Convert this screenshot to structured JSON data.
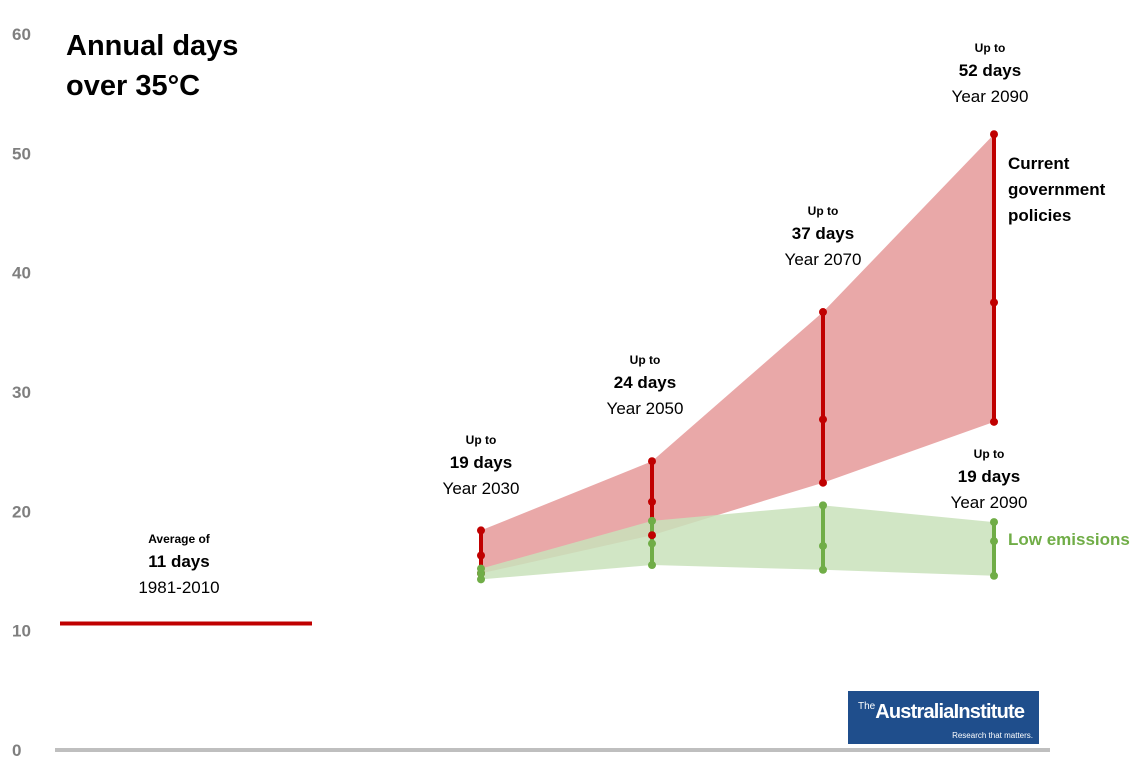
{
  "chart_data": {
    "type": "area",
    "title_lines": [
      "Annual days",
      "over 35°C"
    ],
    "ylim": [
      0,
      60
    ],
    "y_ticks": [
      0,
      10,
      20,
      30,
      40,
      50,
      60
    ],
    "grid": false,
    "baseline": {
      "label_top": "Average of",
      "label_value": "11 days",
      "label_period": "1981-2010",
      "value": 10.6,
      "color": "#c00000"
    },
    "x": [
      2030,
      2050,
      2070,
      2090
    ],
    "series": [
      {
        "name": "Current government policies",
        "color": "#c00000",
        "fill": "#e8a3a3",
        "low": [
          14.8,
          18.0,
          22.4,
          27.5
        ],
        "mid": [
          16.3,
          20.8,
          27.7,
          37.5
        ],
        "high": [
          18.4,
          24.2,
          36.7,
          51.6
        ]
      },
      {
        "name": "Low emissions",
        "color": "#70ad47",
        "fill": "#c9e2bb",
        "low": [
          14.3,
          15.5,
          15.1,
          14.6
        ],
        "mid": [
          14.8,
          17.3,
          17.1,
          17.5
        ],
        "high": [
          15.2,
          19.2,
          20.5,
          19.1
        ]
      }
    ],
    "annotations": [
      {
        "x": 2030,
        "up_to": "Up to",
        "days": "19 days",
        "year": "Year 2030"
      },
      {
        "x": 2050,
        "up_to": "Up to",
        "days": "24 days",
        "year": "Year 2050"
      },
      {
        "x": 2070,
        "up_to": "Up to",
        "days": "37 days",
        "year": "Year 2070"
      },
      {
        "x": 2090,
        "up_to": "Up to",
        "days": "52 days",
        "year": "Year 2090"
      },
      {
        "x": 2090,
        "up_to": "Up to",
        "days": "19 days",
        "year": "Year 2090"
      }
    ],
    "series_label_current": "Current government policies",
    "series_label_low": "Low emissions"
  },
  "logo": {
    "the": "The",
    "name": "AustraliaInstitute",
    "tagline": "Research that matters."
  }
}
